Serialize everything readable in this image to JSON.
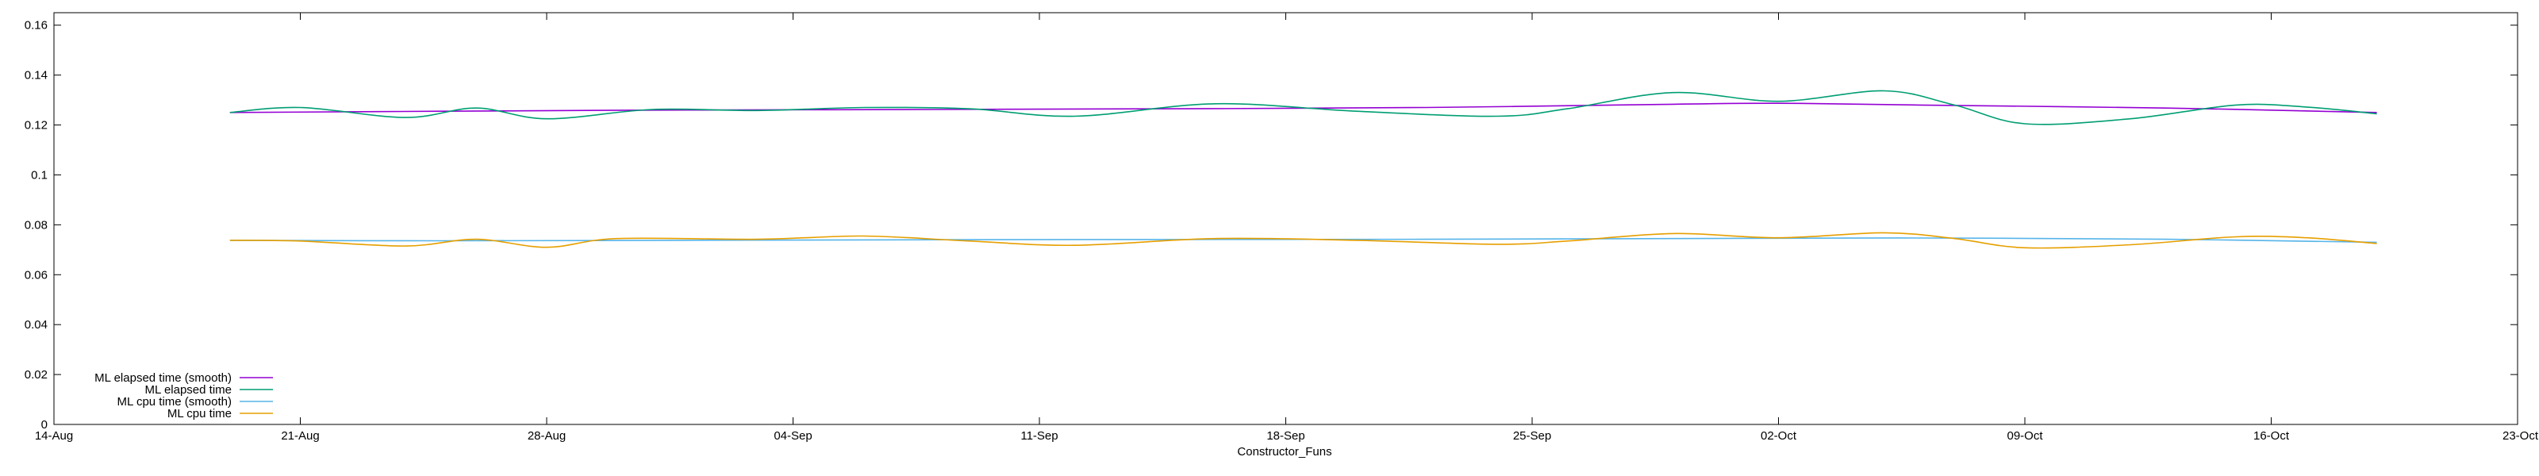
{
  "chart_data": {
    "type": "line",
    "title": "",
    "xlabel": "Constructor_Funs",
    "ylabel": "",
    "x_ticks": [
      "14-Aug",
      "21-Aug",
      "28-Aug",
      "04-Sep",
      "11-Sep",
      "18-Sep",
      "25-Sep",
      "02-Oct",
      "09-Oct",
      "16-Oct",
      "23-Oct"
    ],
    "y_ticks": [
      "0",
      "0.02",
      "0.04",
      "0.06",
      "0.08",
      "0.1",
      "0.12",
      "0.14",
      "0.16"
    ],
    "xlim": [
      "14-Aug",
      "23-Oct"
    ],
    "ylim": [
      0,
      0.165
    ],
    "grid": false,
    "legend_position": "bottom-left",
    "series": [
      {
        "name": "ML elapsed time (smooth)",
        "color": "#9400d3",
        "x": [
          "19-Aug",
          "25-Aug",
          "01-Sep",
          "08-Sep",
          "15-Sep",
          "22-Sep",
          "29-Sep",
          "02-Oct",
          "06-Oct",
          "13-Oct",
          "19-Oct"
        ],
        "values": [
          0.125,
          0.1255,
          0.126,
          0.1262,
          0.1265,
          0.127,
          0.1283,
          0.1287,
          0.128,
          0.1268,
          0.125
        ]
      },
      {
        "name": "ML elapsed time",
        "color": "#009e73",
        "x": [
          "19-Aug",
          "21-Aug",
          "24-Aug",
          "26-Aug",
          "28-Aug",
          "31-Aug",
          "03-Sep",
          "06-Sep",
          "09-Sep",
          "12-Sep",
          "16-Sep",
          "20-Sep",
          "24-Sep",
          "26-Sep",
          "29-Sep",
          "02-Oct",
          "05-Oct",
          "07-Oct",
          "09-Oct",
          "12-Oct",
          "15-Oct",
          "17-Oct",
          "19-Oct"
        ],
        "values": [
          0.125,
          0.127,
          0.123,
          0.1268,
          0.1225,
          0.1262,
          0.1258,
          0.127,
          0.1265,
          0.1235,
          0.1285,
          0.1255,
          0.1235,
          0.1265,
          0.133,
          0.1295,
          0.1337,
          0.128,
          0.1205,
          0.1225,
          0.128,
          0.1272,
          0.1245
        ]
      },
      {
        "name": "ML cpu time (smooth)",
        "color": "#56b4e9",
        "x": [
          "19-Aug",
          "25-Aug",
          "01-Sep",
          "08-Sep",
          "15-Sep",
          "22-Sep",
          "29-Sep",
          "06-Oct",
          "13-Oct",
          "19-Oct"
        ],
        "values": [
          0.0738,
          0.0736,
          0.0738,
          0.074,
          0.0741,
          0.0742,
          0.0745,
          0.0747,
          0.0742,
          0.073
        ]
      },
      {
        "name": "ML cpu time",
        "color": "#e69f00",
        "x": [
          "19-Aug",
          "21-Aug",
          "24-Aug",
          "26-Aug",
          "28-Aug",
          "30-Aug",
          "03-Sep",
          "06-Sep",
          "09-Sep",
          "12-Sep",
          "16-Sep",
          "20-Sep",
          "24-Sep",
          "26-Sep",
          "29-Sep",
          "02-Oct",
          "05-Oct",
          "07-Oct",
          "09-Oct",
          "12-Oct",
          "15-Oct",
          "17-Oct",
          "19-Oct"
        ],
        "values": [
          0.0738,
          0.0735,
          0.0715,
          0.0742,
          0.071,
          0.0745,
          0.0742,
          0.0755,
          0.0735,
          0.0718,
          0.0745,
          0.0738,
          0.0722,
          0.0735,
          0.0765,
          0.0748,
          0.0768,
          0.0745,
          0.0708,
          0.072,
          0.0752,
          0.0748,
          0.0725
        ]
      }
    ]
  }
}
